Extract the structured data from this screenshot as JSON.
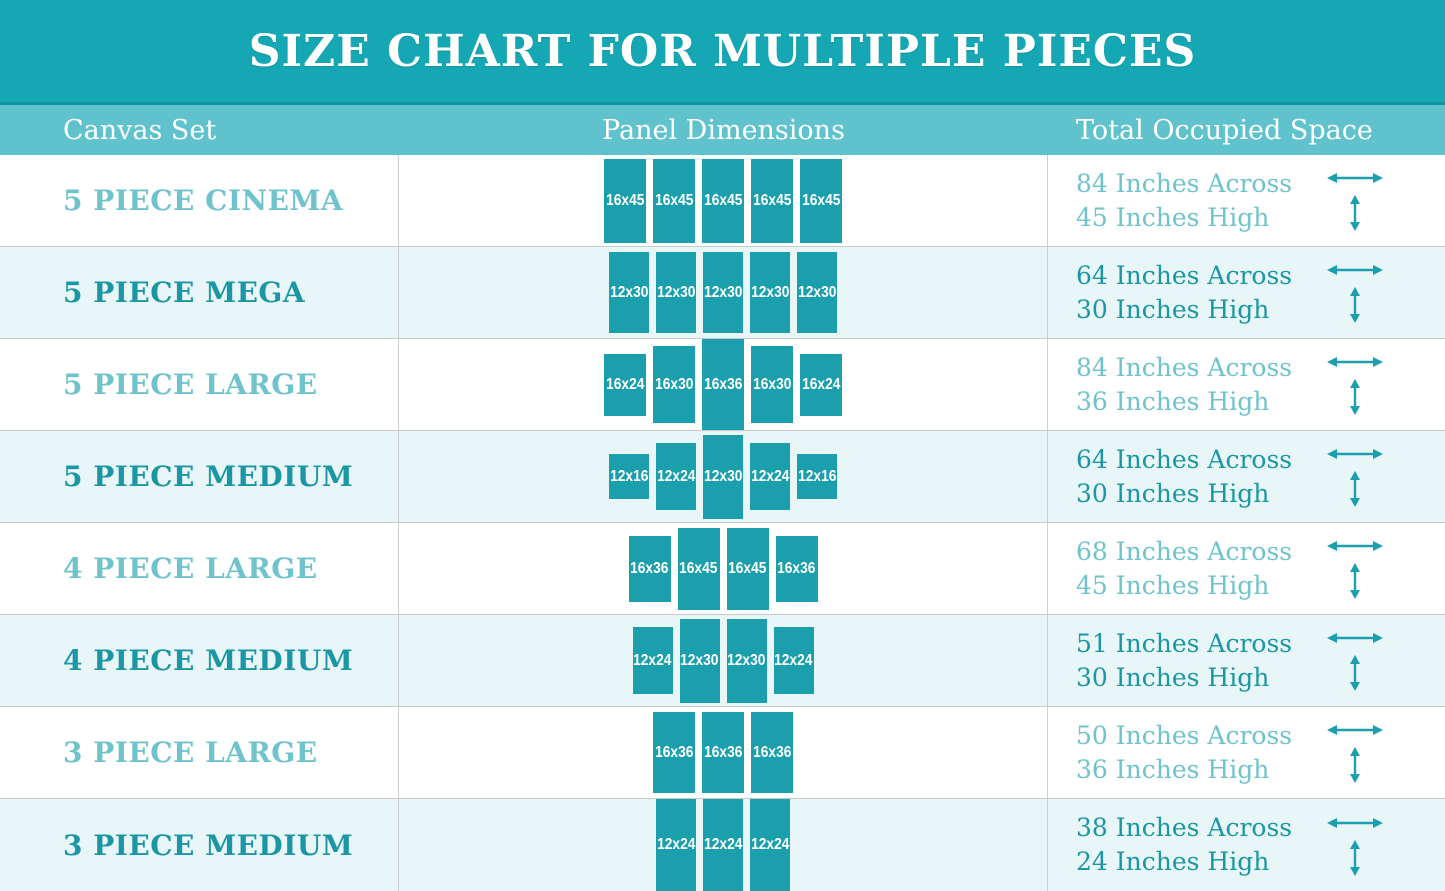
{
  "title": "SIZE CHART FOR MULTIPLE PIECES",
  "columns": {
    "canvas_set": "Canvas Set",
    "panel_dimensions": "Panel Dimensions",
    "total_occupied_space": "Total Occupied Space"
  },
  "colors": {
    "banner_bg": "#15a7b3",
    "column_header_bg": "#5fc2cc",
    "column_header_divider": "#0e95a2",
    "row_alt_bg": "#e9f6f8",
    "panel_fill": "#1c9fad",
    "label_light": "#6fc3cc",
    "label_dark": "#1b96a4",
    "arrow": "#1b9fae",
    "grid_line": "#c9c9c9"
  },
  "rows": [
    {
      "name": "5 PIECE CINEMA",
      "tone": "light",
      "scale": 1.87,
      "panels": [
        {
          "label": "16x45",
          "w_in": 16,
          "h_in": 45
        },
        {
          "label": "16x45",
          "w_in": 16,
          "h_in": 45
        },
        {
          "label": "16x45",
          "w_in": 16,
          "h_in": 45
        },
        {
          "label": "16x45",
          "w_in": 16,
          "h_in": 45
        },
        {
          "label": "16x45",
          "w_in": 16,
          "h_in": 45
        }
      ],
      "across": "84 Inches Across",
      "high": "45 Inches High"
    },
    {
      "name": "5 PIECE MEGA",
      "tone": "dark",
      "scale": 2.7,
      "panels": [
        {
          "label": "12x30",
          "w_in": 12,
          "h_in": 30
        },
        {
          "label": "12x30",
          "w_in": 12,
          "h_in": 30
        },
        {
          "label": "12x30",
          "w_in": 12,
          "h_in": 30
        },
        {
          "label": "12x30",
          "w_in": 12,
          "h_in": 30
        },
        {
          "label": "12x30",
          "w_in": 12,
          "h_in": 30
        }
      ],
      "across": "64 Inches Across",
      "high": "30 Inches High"
    },
    {
      "name": "5 PIECE LARGE",
      "tone": "light",
      "scale": 2.57,
      "panels": [
        {
          "label": "16x24",
          "w_in": 16,
          "h_in": 24
        },
        {
          "label": "16x30",
          "w_in": 16,
          "h_in": 30
        },
        {
          "label": "16x36",
          "w_in": 16,
          "h_in": 36
        },
        {
          "label": "16x30",
          "w_in": 16,
          "h_in": 30
        },
        {
          "label": "16x24",
          "w_in": 16,
          "h_in": 24
        }
      ],
      "across": "84 Inches Across",
      "high": "36 Inches High"
    },
    {
      "name": "5 PIECE MEDIUM",
      "tone": "dark",
      "scale": 2.8,
      "panels": [
        {
          "label": "12x16",
          "w_in": 12,
          "h_in": 16
        },
        {
          "label": "12x24",
          "w_in": 12,
          "h_in": 24
        },
        {
          "label": "12x30",
          "w_in": 12,
          "h_in": 30
        },
        {
          "label": "12x24",
          "w_in": 12,
          "h_in": 24
        },
        {
          "label": "12x16",
          "w_in": 12,
          "h_in": 16
        }
      ],
      "across": "64 Inches Across",
      "high": "30 Inches High"
    },
    {
      "name": "4 PIECE LARGE",
      "tone": "light",
      "scale": 1.83,
      "panels": [
        {
          "label": "16x36",
          "w_in": 16,
          "h_in": 36
        },
        {
          "label": "16x45",
          "w_in": 16,
          "h_in": 45
        },
        {
          "label": "16x45",
          "w_in": 16,
          "h_in": 45
        },
        {
          "label": "16x36",
          "w_in": 16,
          "h_in": 36
        }
      ],
      "across": "68 Inches Across",
      "high": "45 Inches High"
    },
    {
      "name": "4 PIECE MEDIUM",
      "tone": "dark",
      "scale": 2.8,
      "panels": [
        {
          "label": "12x24",
          "w_in": 12,
          "h_in": 24
        },
        {
          "label": "12x30",
          "w_in": 12,
          "h_in": 30
        },
        {
          "label": "12x30",
          "w_in": 12,
          "h_in": 30
        },
        {
          "label": "12x24",
          "w_in": 12,
          "h_in": 24
        }
      ],
      "across": "51 Inches Across",
      "high": "30 Inches High"
    },
    {
      "name": "3 PIECE LARGE",
      "tone": "light",
      "scale": 2.25,
      "panels": [
        {
          "label": "16x36",
          "w_in": 16,
          "h_in": 36
        },
        {
          "label": "16x36",
          "w_in": 16,
          "h_in": 36
        },
        {
          "label": "16x36",
          "w_in": 16,
          "h_in": 36
        }
      ],
      "across": "50 Inches Across",
      "high": "36 Inches High"
    },
    {
      "name": "3 PIECE MEDIUM",
      "tone": "dark",
      "scale": 4.0,
      "panels": [
        {
          "label": "12x24",
          "w_in": 12,
          "h_in": 24
        },
        {
          "label": "12x24",
          "w_in": 12,
          "h_in": 24
        },
        {
          "label": "12x24",
          "w_in": 12,
          "h_in": 24
        }
      ],
      "across": "38 Inches Across",
      "high": "24 Inches High"
    }
  ]
}
